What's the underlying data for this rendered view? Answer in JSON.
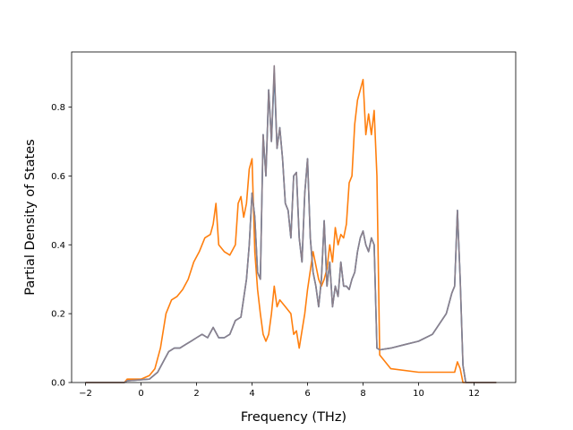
{
  "chart_data": {
    "type": "line",
    "title": "",
    "xlabel": "Frequency (THz)",
    "ylabel": "Partial Density of States",
    "xlim": [
      -2.5,
      13.5
    ],
    "ylim": [
      0.0,
      0.96
    ],
    "x_ticks": [
      -2,
      0,
      2,
      4,
      6,
      8,
      10,
      12
    ],
    "x_tick_labels": [
      "−2",
      "0",
      "2",
      "4",
      "6",
      "8",
      "10",
      "12"
    ],
    "y_ticks": [
      0.0,
      0.2,
      0.4,
      0.6,
      0.8
    ],
    "y_tick_labels": [
      "0.0",
      "0.2",
      "0.4",
      "0.6",
      "0.8"
    ],
    "grid": false,
    "legend": "none",
    "series": [
      {
        "color": "#1f77b4",
        "x": [
          -2.0,
          -0.6,
          -0.5,
          0.3,
          0.6,
          0.8,
          1.0,
          1.2,
          1.4,
          1.6,
          1.8,
          2.0,
          2.2,
          2.4,
          2.6,
          2.8,
          3.0,
          3.2,
          3.4,
          3.6,
          3.8,
          3.9,
          4.0,
          4.1,
          4.2,
          4.3,
          4.4,
          4.5,
          4.6,
          4.7,
          4.8,
          4.9,
          5.0,
          5.1,
          5.2,
          5.3,
          5.4,
          5.5,
          5.6,
          5.7,
          5.8,
          5.9,
          6.0,
          6.1,
          6.2,
          6.3,
          6.4,
          6.5,
          6.6,
          6.7,
          6.8,
          6.9,
          7.0,
          7.1,
          7.2,
          7.3,
          7.4,
          7.5,
          7.6,
          7.7,
          7.8,
          7.9,
          8.0,
          8.1,
          8.2,
          8.3,
          8.4,
          8.5,
          8.6,
          9.0,
          9.5,
          10.0,
          10.5,
          11.0,
          11.2,
          11.3,
          11.4,
          11.5,
          11.6,
          11.7,
          12.8
        ],
        "y": [
          0.0,
          0.0,
          0.005,
          0.01,
          0.03,
          0.06,
          0.09,
          0.1,
          0.1,
          0.11,
          0.12,
          0.13,
          0.14,
          0.13,
          0.16,
          0.13,
          0.13,
          0.14,
          0.18,
          0.19,
          0.3,
          0.4,
          0.55,
          0.48,
          0.32,
          0.3,
          0.72,
          0.6,
          0.85,
          0.7,
          0.9,
          0.68,
          0.74,
          0.65,
          0.52,
          0.5,
          0.42,
          0.6,
          0.61,
          0.42,
          0.35,
          0.55,
          0.65,
          0.42,
          0.32,
          0.28,
          0.22,
          0.3,
          0.47,
          0.28,
          0.35,
          0.22,
          0.28,
          0.25,
          0.35,
          0.28,
          0.28,
          0.27,
          0.3,
          0.32,
          0.38,
          0.42,
          0.44,
          0.4,
          0.38,
          0.42,
          0.4,
          0.1,
          0.095,
          0.1,
          0.11,
          0.12,
          0.14,
          0.2,
          0.26,
          0.28,
          0.5,
          0.3,
          0.05,
          0.0,
          0.0
        ]
      },
      {
        "color": "#ff7f0e",
        "x": [
          -2.0,
          -0.6,
          -0.5,
          0.0,
          0.3,
          0.5,
          0.7,
          0.9,
          1.1,
          1.3,
          1.5,
          1.7,
          1.9,
          2.1,
          2.3,
          2.5,
          2.6,
          2.7,
          2.8,
          3.0,
          3.2,
          3.4,
          3.5,
          3.6,
          3.7,
          3.8,
          3.9,
          4.0,
          4.1,
          4.2,
          4.3,
          4.4,
          4.5,
          4.6,
          4.7,
          4.8,
          4.9,
          5.0,
          5.2,
          5.4,
          5.5,
          5.6,
          5.7,
          5.8,
          5.9,
          6.0,
          6.2,
          6.4,
          6.5,
          6.6,
          6.7,
          6.8,
          6.9,
          7.0,
          7.1,
          7.2,
          7.3,
          7.4,
          7.5,
          7.6,
          7.7,
          7.8,
          7.9,
          8.0,
          8.1,
          8.2,
          8.3,
          8.4,
          8.5,
          8.6,
          9.0,
          10.0,
          10.5,
          11.0,
          11.3,
          11.4,
          11.5,
          11.6,
          12.8
        ],
        "y": [
          0.0,
          0.0,
          0.01,
          0.01,
          0.02,
          0.04,
          0.1,
          0.2,
          0.24,
          0.25,
          0.27,
          0.3,
          0.35,
          0.38,
          0.42,
          0.43,
          0.46,
          0.52,
          0.4,
          0.38,
          0.37,
          0.4,
          0.52,
          0.54,
          0.48,
          0.52,
          0.62,
          0.65,
          0.38,
          0.27,
          0.2,
          0.14,
          0.12,
          0.14,
          0.2,
          0.28,
          0.22,
          0.24,
          0.22,
          0.2,
          0.14,
          0.15,
          0.1,
          0.15,
          0.2,
          0.27,
          0.38,
          0.3,
          0.28,
          0.3,
          0.33,
          0.4,
          0.35,
          0.45,
          0.4,
          0.43,
          0.42,
          0.46,
          0.58,
          0.6,
          0.75,
          0.82,
          0.85,
          0.88,
          0.72,
          0.78,
          0.72,
          0.79,
          0.6,
          0.08,
          0.04,
          0.03,
          0.03,
          0.03,
          0.03,
          0.06,
          0.04,
          0.0,
          0.0
        ]
      },
      {
        "color": "#8c7f8a",
        "x": [
          -2.0,
          -0.6,
          -0.5,
          0.3,
          0.6,
          0.8,
          1.0,
          1.2,
          1.4,
          1.6,
          1.8,
          2.0,
          2.2,
          2.4,
          2.6,
          2.8,
          3.0,
          3.2,
          3.4,
          3.6,
          3.8,
          3.9,
          4.0,
          4.1,
          4.2,
          4.3,
          4.4,
          4.5,
          4.6,
          4.7,
          4.8,
          4.9,
          5.0,
          5.1,
          5.2,
          5.3,
          5.4,
          5.5,
          5.6,
          5.7,
          5.8,
          5.9,
          6.0,
          6.1,
          6.2,
          6.3,
          6.4,
          6.5,
          6.6,
          6.7,
          6.8,
          6.9,
          7.0,
          7.1,
          7.2,
          7.3,
          7.4,
          7.5,
          7.6,
          7.7,
          7.8,
          7.9,
          8.0,
          8.1,
          8.2,
          8.3,
          8.4,
          8.5,
          8.6,
          9.0,
          9.5,
          10.0,
          10.5,
          11.0,
          11.2,
          11.3,
          11.4,
          11.5,
          11.6,
          11.7,
          12.8
        ],
        "y": [
          0.0,
          0.0,
          0.005,
          0.01,
          0.03,
          0.06,
          0.09,
          0.1,
          0.1,
          0.11,
          0.12,
          0.13,
          0.14,
          0.13,
          0.16,
          0.13,
          0.13,
          0.14,
          0.18,
          0.19,
          0.3,
          0.4,
          0.55,
          0.48,
          0.32,
          0.3,
          0.72,
          0.6,
          0.85,
          0.7,
          0.92,
          0.68,
          0.74,
          0.65,
          0.52,
          0.5,
          0.42,
          0.6,
          0.61,
          0.42,
          0.35,
          0.55,
          0.65,
          0.42,
          0.32,
          0.28,
          0.22,
          0.3,
          0.47,
          0.28,
          0.35,
          0.22,
          0.28,
          0.25,
          0.35,
          0.28,
          0.28,
          0.27,
          0.3,
          0.32,
          0.38,
          0.42,
          0.44,
          0.4,
          0.38,
          0.42,
          0.4,
          0.1,
          0.095,
          0.1,
          0.11,
          0.12,
          0.14,
          0.2,
          0.26,
          0.28,
          0.5,
          0.3,
          0.05,
          0.0,
          0.0
        ]
      }
    ]
  }
}
